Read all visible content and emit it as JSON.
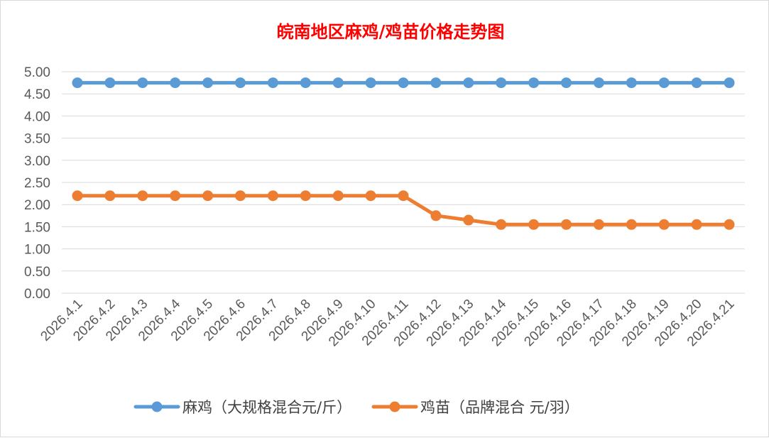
{
  "chart_data": {
    "type": "line",
    "title": "皖南地区麻鸡/鸡苗价格走势图",
    "title_color": "#ff0000",
    "categories": [
      "2026.4.1",
      "2026.4.2",
      "2026.4.3",
      "2026.4.4",
      "2026.4.5",
      "2026.4.6",
      "2026.4.7",
      "2026.4.8",
      "2026.4.9",
      "2026.4.10",
      "2026.4.11",
      "2026.4.12",
      "2026.4.13",
      "2026.4.14",
      "2026.4.15",
      "2026.4.16",
      "2026.4.17",
      "2026.4.18",
      "2026.4.19",
      "2026.4.20",
      "2026.4.21"
    ],
    "y_ticks": [
      "0.00",
      "0.50",
      "1.00",
      "1.50",
      "2.00",
      "2.50",
      "3.00",
      "3.50",
      "4.00",
      "4.50",
      "5.00"
    ],
    "ylim": [
      0,
      5
    ],
    "grid": true,
    "legend_position": "bottom",
    "series": [
      {
        "name": "麻鸡（大规格混合元/斤）",
        "color": "#5b9bd5",
        "values": [
          4.75,
          4.75,
          4.75,
          4.75,
          4.75,
          4.75,
          4.75,
          4.75,
          4.75,
          4.75,
          4.75,
          4.75,
          4.75,
          4.75,
          4.75,
          4.75,
          4.75,
          4.75,
          4.75,
          4.75,
          4.75
        ]
      },
      {
        "name": "鸡苗（品牌混合 元/羽）",
        "color": "#ed7d31",
        "values": [
          2.2,
          2.2,
          2.2,
          2.2,
          2.2,
          2.2,
          2.2,
          2.2,
          2.2,
          2.2,
          2.2,
          1.75,
          1.65,
          1.55,
          1.55,
          1.55,
          1.55,
          1.55,
          1.55,
          1.55,
          1.55
        ]
      }
    ]
  }
}
